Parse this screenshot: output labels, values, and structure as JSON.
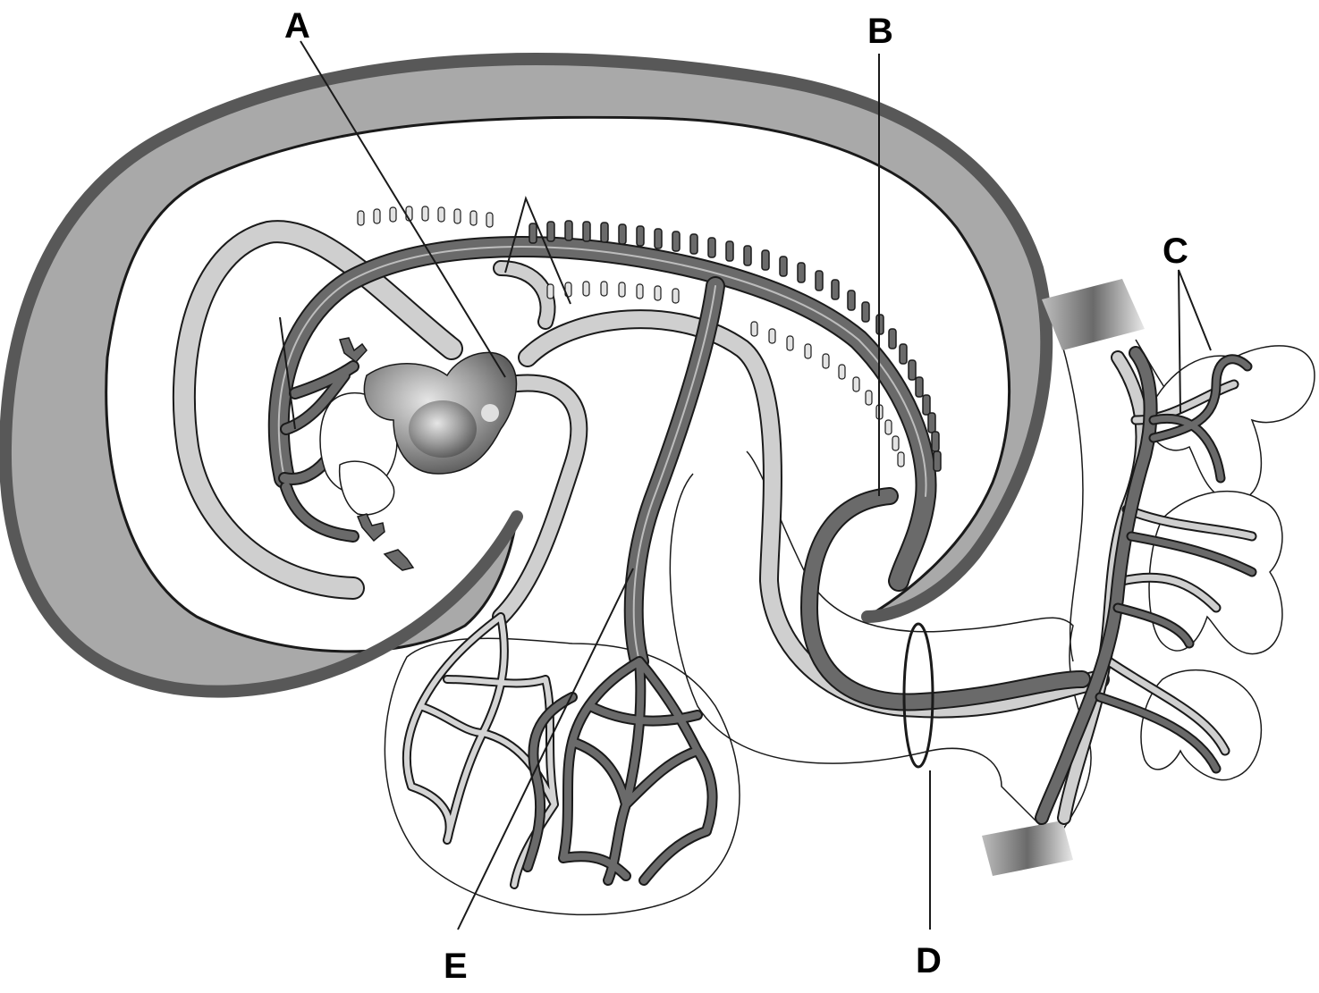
{
  "labels": {
    "a": "A",
    "b": "B",
    "c": "C",
    "d": "D",
    "e": "E"
  },
  "colors": {
    "wall_dark": "#585858",
    "wall_fill": "#a9a9a9",
    "vessel_dark": "#6a6a6a",
    "vessel_light": "#cfcfcf",
    "outline": "#1a1a1a",
    "background": "#ffffff"
  }
}
